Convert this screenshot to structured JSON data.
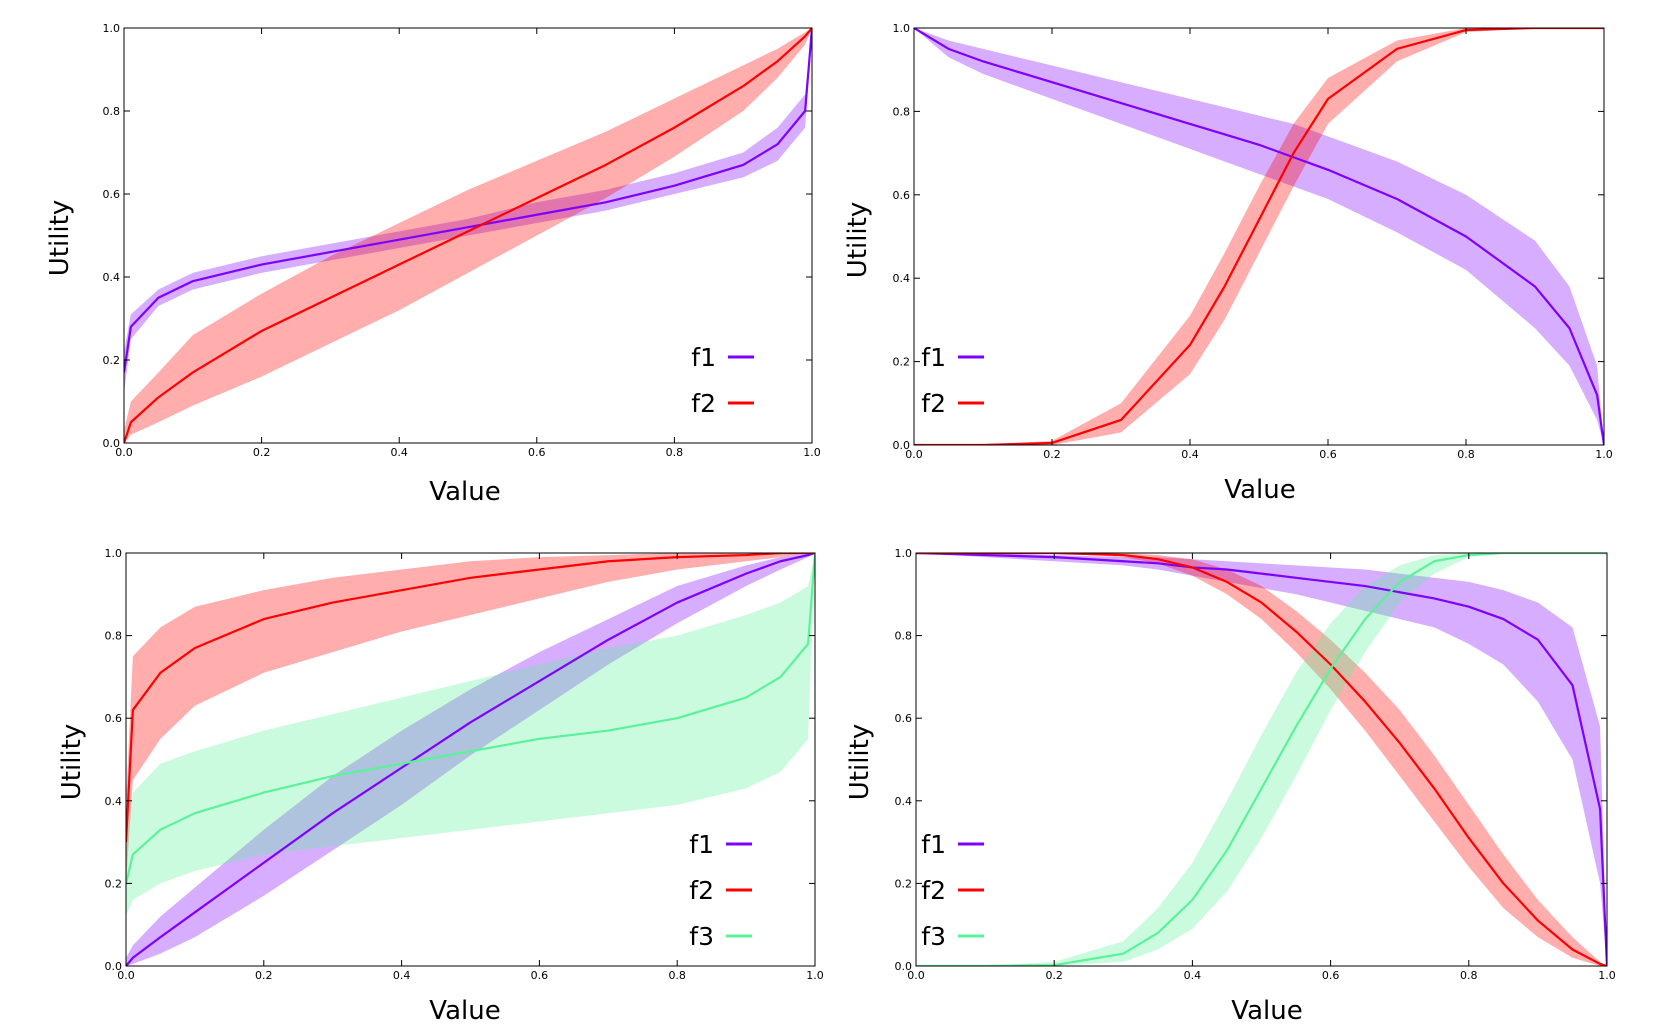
{
  "chart_data": [
    {
      "type": "line",
      "xlabel": "Value",
      "ylabel": "Utility",
      "xlim": [
        0,
        1
      ],
      "ylim": [
        0,
        1
      ],
      "xticks": [
        "0.0",
        "0.2",
        "0.4",
        "0.6",
        "0.8",
        "1.0"
      ],
      "yticks": [
        "0.0",
        "0.2",
        "0.4",
        "0.6",
        "0.8",
        "1.0"
      ],
      "legend": "bottom-right",
      "x": [
        0,
        0.01,
        0.05,
        0.1,
        0.2,
        0.3,
        0.4,
        0.5,
        0.6,
        0.7,
        0.8,
        0.9,
        0.95,
        0.99,
        1.0
      ],
      "series": [
        {
          "name": "f1",
          "color": "#7f00ff",
          "values": [
            0.17,
            0.28,
            0.35,
            0.39,
            0.43,
            0.46,
            0.49,
            0.52,
            0.55,
            0.58,
            0.62,
            0.67,
            0.72,
            0.8,
            1.0
          ],
          "lower": [
            0.12,
            0.25,
            0.33,
            0.37,
            0.41,
            0.44,
            0.47,
            0.5,
            0.53,
            0.56,
            0.6,
            0.64,
            0.68,
            0.76,
            1.0
          ],
          "upper": [
            0.22,
            0.31,
            0.37,
            0.41,
            0.45,
            0.48,
            0.51,
            0.54,
            0.58,
            0.61,
            0.65,
            0.7,
            0.76,
            0.84,
            1.0
          ]
        },
        {
          "name": "f2",
          "color": "#ff0000",
          "values": [
            0.0,
            0.05,
            0.11,
            0.17,
            0.27,
            0.35,
            0.43,
            0.51,
            0.59,
            0.67,
            0.76,
            0.86,
            0.92,
            0.98,
            1.0
          ],
          "lower": [
            0.0,
            0.02,
            0.05,
            0.09,
            0.16,
            0.24,
            0.32,
            0.41,
            0.5,
            0.59,
            0.69,
            0.8,
            0.88,
            0.96,
            1.0
          ],
          "upper": [
            0.03,
            0.1,
            0.17,
            0.26,
            0.36,
            0.45,
            0.53,
            0.61,
            0.68,
            0.75,
            0.83,
            0.91,
            0.95,
            0.99,
            1.0
          ]
        }
      ]
    },
    {
      "type": "line",
      "xlabel": "Value",
      "ylabel": "Utility",
      "xlim": [
        0,
        1
      ],
      "ylim": [
        0,
        1
      ],
      "xticks": [
        "0.0",
        "0.2",
        "0.4",
        "0.6",
        "0.8",
        "1.0"
      ],
      "yticks": [
        "0.0",
        "0.2",
        "0.4",
        "0.6",
        "0.8",
        "1.0"
      ],
      "legend": "bottom-left",
      "x": [
        0,
        0.05,
        0.1,
        0.2,
        0.3,
        0.4,
        0.45,
        0.5,
        0.55,
        0.6,
        0.7,
        0.8,
        0.9,
        0.95,
        0.99,
        1.0
      ],
      "series": [
        {
          "name": "f1",
          "color": "#7f00ff",
          "values": [
            1.0,
            0.95,
            0.92,
            0.87,
            0.82,
            0.77,
            0.745,
            0.72,
            0.69,
            0.66,
            0.59,
            0.5,
            0.38,
            0.28,
            0.12,
            0.0
          ],
          "lower": [
            1.0,
            0.93,
            0.89,
            0.83,
            0.77,
            0.71,
            0.68,
            0.65,
            0.62,
            0.59,
            0.51,
            0.42,
            0.28,
            0.19,
            0.06,
            0.0
          ],
          "upper": [
            1.0,
            0.97,
            0.95,
            0.91,
            0.87,
            0.83,
            0.81,
            0.79,
            0.77,
            0.74,
            0.68,
            0.6,
            0.49,
            0.38,
            0.19,
            0.0
          ]
        },
        {
          "name": "f2",
          "color": "#ff0000",
          "values": [
            0.0,
            0.0,
            0.0,
            0.005,
            0.06,
            0.24,
            0.38,
            0.54,
            0.7,
            0.83,
            0.95,
            0.995,
            1.0,
            1.0,
            1.0,
            1.0
          ],
          "lower": [
            0.0,
            0.0,
            0.0,
            0.0,
            0.03,
            0.17,
            0.3,
            0.46,
            0.62,
            0.77,
            0.92,
            0.99,
            1.0,
            1.0,
            1.0,
            1.0
          ],
          "upper": [
            0.0,
            0.0,
            0.0,
            0.01,
            0.1,
            0.31,
            0.46,
            0.62,
            0.77,
            0.88,
            0.97,
            1.0,
            1.0,
            1.0,
            1.0,
            1.0
          ]
        }
      ]
    },
    {
      "type": "line",
      "xlabel": "Value",
      "ylabel": "Utility",
      "xlim": [
        0,
        1
      ],
      "ylim": [
        0,
        1
      ],
      "xticks": [
        "0.0",
        "0.2",
        "0.4",
        "0.6",
        "0.8",
        "1.0"
      ],
      "yticks": [
        "0.0",
        "0.2",
        "0.4",
        "0.6",
        "0.8",
        "1.0"
      ],
      "legend": "bottom-right",
      "x": [
        0,
        0.01,
        0.05,
        0.1,
        0.2,
        0.3,
        0.4,
        0.5,
        0.6,
        0.7,
        0.8,
        0.9,
        0.95,
        0.99,
        1.0
      ],
      "series": [
        {
          "name": "f1",
          "color": "#7f00ff",
          "values": [
            0.0,
            0.02,
            0.07,
            0.13,
            0.25,
            0.37,
            0.48,
            0.59,
            0.69,
            0.79,
            0.88,
            0.95,
            0.98,
            0.995,
            1.0
          ],
          "lower": [
            0.0,
            0.005,
            0.03,
            0.07,
            0.17,
            0.28,
            0.39,
            0.51,
            0.62,
            0.73,
            0.83,
            0.92,
            0.96,
            0.99,
            1.0
          ],
          "upper": [
            0.02,
            0.05,
            0.12,
            0.19,
            0.33,
            0.46,
            0.57,
            0.67,
            0.76,
            0.84,
            0.92,
            0.97,
            0.99,
            1.0,
            1.0
          ]
        },
        {
          "name": "f2",
          "color": "#ff0000",
          "values": [
            0.3,
            0.62,
            0.71,
            0.77,
            0.84,
            0.88,
            0.91,
            0.94,
            0.96,
            0.98,
            0.99,
            0.995,
            1.0,
            1.0,
            1.0
          ],
          "lower": [
            0.2,
            0.45,
            0.55,
            0.63,
            0.71,
            0.76,
            0.81,
            0.85,
            0.89,
            0.93,
            0.96,
            0.98,
            0.99,
            1.0,
            1.0
          ],
          "upper": [
            0.4,
            0.75,
            0.82,
            0.87,
            0.91,
            0.94,
            0.96,
            0.98,
            0.99,
            0.995,
            1.0,
            1.0,
            1.0,
            1.0,
            1.0
          ]
        },
        {
          "name": "f3",
          "color": "#5cf29a",
          "values": [
            0.2,
            0.27,
            0.33,
            0.37,
            0.42,
            0.46,
            0.49,
            0.52,
            0.55,
            0.57,
            0.6,
            0.65,
            0.7,
            0.78,
            1.0
          ],
          "lower": [
            0.12,
            0.16,
            0.2,
            0.23,
            0.27,
            0.29,
            0.31,
            0.33,
            0.35,
            0.37,
            0.39,
            0.43,
            0.47,
            0.55,
            1.0
          ],
          "upper": [
            0.3,
            0.42,
            0.49,
            0.52,
            0.57,
            0.61,
            0.65,
            0.69,
            0.73,
            0.77,
            0.8,
            0.85,
            0.88,
            0.92,
            1.0
          ]
        }
      ]
    },
    {
      "type": "line",
      "xlabel": "Value",
      "ylabel": "Utility",
      "xlim": [
        0,
        1
      ],
      "ylim": [
        0,
        1
      ],
      "xticks": [
        "0.0",
        "0.2",
        "0.4",
        "0.6",
        "0.8",
        "1.0"
      ],
      "yticks": [
        "0.0",
        "0.2",
        "0.4",
        "0.6",
        "0.8",
        "1.0"
      ],
      "legend": "bottom-left",
      "x": [
        0,
        0.1,
        0.2,
        0.3,
        0.35,
        0.4,
        0.45,
        0.5,
        0.55,
        0.6,
        0.65,
        0.7,
        0.75,
        0.8,
        0.85,
        0.9,
        0.95,
        0.99,
        1.0
      ],
      "series": [
        {
          "name": "f1",
          "color": "#7f00ff",
          "values": [
            1.0,
            0.995,
            0.99,
            0.98,
            0.975,
            0.965,
            0.96,
            0.95,
            0.94,
            0.93,
            0.92,
            0.905,
            0.89,
            0.87,
            0.84,
            0.79,
            0.68,
            0.38,
            0.0
          ],
          "lower": [
            1.0,
            0.99,
            0.98,
            0.97,
            0.96,
            0.945,
            0.93,
            0.915,
            0.9,
            0.88,
            0.86,
            0.84,
            0.82,
            0.78,
            0.73,
            0.64,
            0.5,
            0.2,
            0.0
          ],
          "upper": [
            1.0,
            1.0,
            0.995,
            0.99,
            0.99,
            0.985,
            0.98,
            0.975,
            0.97,
            0.965,
            0.96,
            0.95,
            0.94,
            0.93,
            0.91,
            0.88,
            0.82,
            0.58,
            0.0
          ]
        },
        {
          "name": "f2",
          "color": "#ff0000",
          "values": [
            1.0,
            1.0,
            1.0,
            0.995,
            0.985,
            0.965,
            0.93,
            0.88,
            0.81,
            0.73,
            0.64,
            0.54,
            0.43,
            0.31,
            0.2,
            0.11,
            0.04,
            0.005,
            0.0
          ],
          "lower": [
            1.0,
            1.0,
            1.0,
            0.99,
            0.975,
            0.945,
            0.9,
            0.84,
            0.76,
            0.67,
            0.57,
            0.46,
            0.35,
            0.24,
            0.14,
            0.07,
            0.02,
            0.0,
            0.0
          ],
          "upper": [
            1.0,
            1.0,
            1.0,
            1.0,
            0.995,
            0.985,
            0.96,
            0.92,
            0.86,
            0.79,
            0.71,
            0.62,
            0.51,
            0.39,
            0.27,
            0.16,
            0.07,
            0.01,
            0.0
          ]
        },
        {
          "name": "f3",
          "color": "#5cf29a",
          "values": [
            0.0,
            0.0,
            0.002,
            0.03,
            0.08,
            0.16,
            0.28,
            0.43,
            0.58,
            0.72,
            0.84,
            0.93,
            0.98,
            0.995,
            1.0,
            1.0,
            1.0,
            1.0,
            1.0
          ],
          "lower": [
            0.0,
            0.0,
            0.0,
            0.01,
            0.04,
            0.09,
            0.18,
            0.31,
            0.46,
            0.62,
            0.76,
            0.88,
            0.95,
            0.99,
            1.0,
            1.0,
            1.0,
            1.0,
            1.0
          ],
          "upper": [
            0.0,
            0.0,
            0.01,
            0.06,
            0.14,
            0.25,
            0.4,
            0.56,
            0.71,
            0.83,
            0.92,
            0.97,
            0.995,
            1.0,
            1.0,
            1.0,
            1.0,
            1.0,
            1.0
          ]
        }
      ]
    }
  ]
}
